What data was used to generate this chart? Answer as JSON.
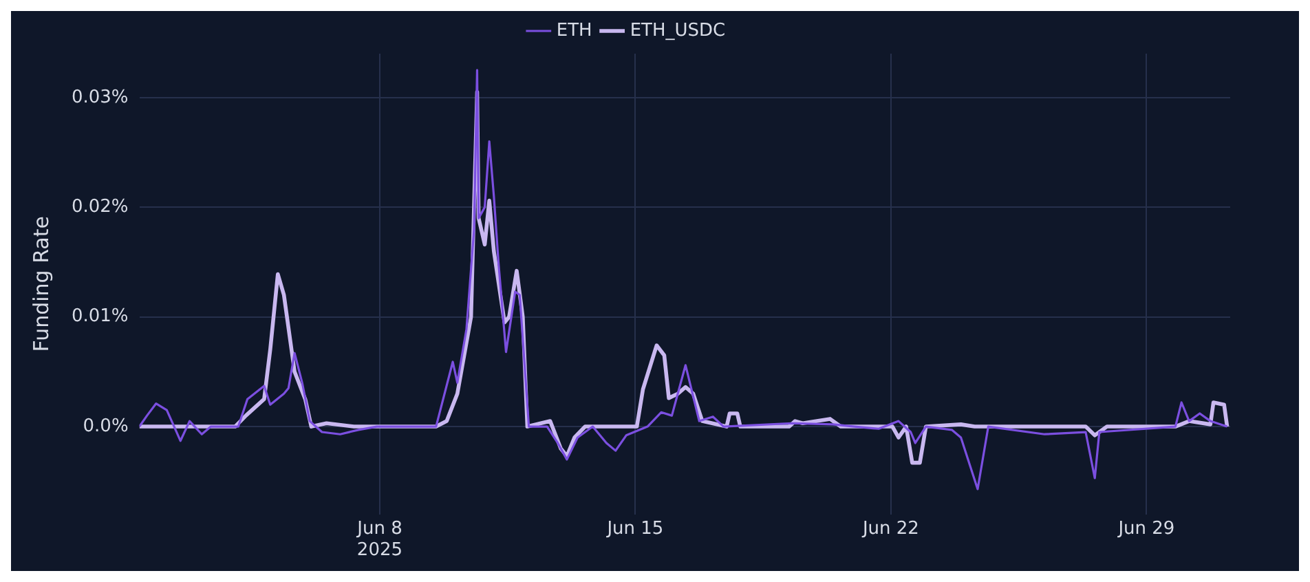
{
  "chart_data": {
    "type": "line",
    "ylabel": "Funding Rate",
    "legend": "top",
    "grid": true,
    "marker": "none",
    "line_style": "solid",
    "xlim": [
      "2025-06-01T10:00",
      "2025-07-01T07:00"
    ],
    "xticks": [
      {
        "value": "2025-06-08",
        "label": "Jun 8\n2025"
      },
      {
        "value": "2025-06-15",
        "label": "Jun 15"
      },
      {
        "value": "2025-06-22",
        "label": "Jun 22"
      },
      {
        "value": "2025-06-29",
        "label": "Jun 29"
      }
    ],
    "ylim": [
      -0.008,
      0.034
    ],
    "yticks": [
      {
        "value": 0,
        "label": "0.0%"
      },
      {
        "value": 0.01,
        "label": "0.01%"
      },
      {
        "value": 0.02,
        "label": "0.02%"
      },
      {
        "value": 0.03,
        "label": "0.03%"
      }
    ],
    "series": [
      {
        "name": "ETH",
        "color": "#7b4fe0",
        "x": [
          "2025-06-01T10:00",
          "2025-06-01T15:00",
          "2025-06-01T21:00",
          "2025-06-02T04:00",
          "2025-06-02T13:00",
          "2025-06-02T19:00",
          "2025-06-03T03:00",
          "2025-06-03T09:00",
          "2025-06-04T03:00",
          "2025-06-04T09:00",
          "2025-06-04T20:00",
          "2025-06-05T00:00",
          "2025-06-05T09:00",
          "2025-06-05T12:00",
          "2025-06-05T16:00",
          "2025-06-05T21:00",
          "2025-06-06T02:00",
          "2025-06-06T10:00",
          "2025-06-06T22:00",
          "2025-06-07T10:00",
          "2025-06-07T22:00",
          "2025-06-09T13:00",
          "2025-06-10T00:00",
          "2025-06-10T03:00",
          "2025-06-10T09:00",
          "2025-06-10T14:00",
          "2025-06-10T16:00",
          "2025-06-10T17:00",
          "2025-06-10T21:00",
          "2025-06-11T00:00",
          "2025-06-11T03:00",
          "2025-06-11T06:00",
          "2025-06-11T11:00",
          "2025-06-11T17:00",
          "2025-06-11T20:00",
          "2025-06-12T02:00",
          "2025-06-12T14:00",
          "2025-06-12T21:00",
          "2025-06-13T03:00",
          "2025-06-13T10:00",
          "2025-06-13T20:00",
          "2025-06-14T05:00",
          "2025-06-14T11:00",
          "2025-06-14T18:00",
          "2025-06-15T08:00",
          "2025-06-15T17:00",
          "2025-06-16T00:00",
          "2025-06-16T09:00",
          "2025-06-16T18:00",
          "2025-06-17T03:00",
          "2025-06-17T10:00",
          "2025-06-19T07:00",
          "2025-06-20T10:00",
          "2025-06-21T00:00",
          "2025-06-21T16:00",
          "2025-06-22T05:00",
          "2025-06-22T13:00",
          "2025-06-22T16:00",
          "2025-06-22T23:00",
          "2025-06-23T16:00",
          "2025-06-23T22:00",
          "2025-06-24T09:00",
          "2025-06-24T16:00",
          "2025-06-26T05:00",
          "2025-06-27T08:00",
          "2025-06-27T14:00",
          "2025-06-27T17:00",
          "2025-06-29T19:00",
          "2025-06-29T23:00",
          "2025-06-30T04:00",
          "2025-06-30T11:00",
          "2025-06-30T18:00",
          "2025-07-01T05:00"
        ],
        "values": [
          0,
          0.001,
          0.0021,
          0.0015,
          -0.0013,
          0.0005,
          -0.0007,
          0,
          0,
          0.0025,
          0.0037,
          0.002,
          0.003,
          0.0035,
          0.0067,
          0.004,
          0.0005,
          -0.0005,
          -0.0007,
          -0.0003,
          0,
          0,
          0.0059,
          0.004,
          0.0089,
          0.018,
          0.0325,
          0.019,
          0.02,
          0.026,
          0.021,
          0.015,
          0.0068,
          0.0123,
          0.012,
          0,
          0,
          -0.0015,
          -0.003,
          -0.001,
          0,
          -0.0015,
          -0.0022,
          -0.0008,
          0,
          0.0013,
          0.001,
          0.0056,
          0.0005,
          0.0009,
          0,
          0.0003,
          0.0002,
          0,
          -0.0002,
          0.0005,
          -0.0005,
          -0.0015,
          0,
          -0.0003,
          -0.001,
          -0.0057,
          0,
          -0.0007,
          -0.0005,
          -0.0047,
          -0.0005,
          0,
          0.0022,
          0.0005,
          0.0012,
          0.0005,
          0
        ]
      },
      {
        "name": "ETH_USDC",
        "color": "#c9b8f0",
        "x": [
          "2025-06-01T10:00",
          "2025-06-04T01:00",
          "2025-06-04T08:00",
          "2025-06-04T20:00",
          "2025-06-05T00:00",
          "2025-06-05T05:00",
          "2025-06-05T09:00",
          "2025-06-05T16:00",
          "2025-06-05T23:00",
          "2025-06-06T03:00",
          "2025-06-06T13:00",
          "2025-06-07T07:00",
          "2025-06-09T13:00",
          "2025-06-09T20:00",
          "2025-06-10T03:00",
          "2025-06-10T12:00",
          "2025-06-10T16:00",
          "2025-06-10T17:00",
          "2025-06-10T21:00",
          "2025-06-11T00:00",
          "2025-06-11T03:00",
          "2025-06-11T10:00",
          "2025-06-11T13:00",
          "2025-06-11T18:00",
          "2025-06-11T22:00",
          "2025-06-12T01:00",
          "2025-06-12T16:00",
          "2025-06-12T23:00",
          "2025-06-13T03:00",
          "2025-06-13T08:00",
          "2025-06-13T15:00",
          "2025-06-15T01:00",
          "2025-06-15T05:00",
          "2025-06-15T14:00",
          "2025-06-15T19:00",
          "2025-06-15T22:00",
          "2025-06-16T04:00",
          "2025-06-16T09:00",
          "2025-06-16T14:00",
          "2025-06-16T20:00",
          "2025-06-17T12:00",
          "2025-06-17T14:00",
          "2025-06-17T19:00",
          "2025-06-17T21:00",
          "2025-06-19T05:00",
          "2025-06-19T09:00",
          "2025-06-19T14:00",
          "2025-06-20T08:00",
          "2025-06-20T15:00",
          "2025-06-22T01:00",
          "2025-06-22T05:00",
          "2025-06-22T10:00",
          "2025-06-22T14:00",
          "2025-06-22T19:00",
          "2025-06-22T23:00",
          "2025-06-23T22:00",
          "2025-06-24T07:00",
          "2025-06-27T08:00",
          "2025-06-27T14:00",
          "2025-06-27T22:00",
          "2025-06-29T19:00",
          "2025-06-30T04:00",
          "2025-06-30T18:00",
          "2025-06-30T20:00",
          "2025-07-01T03:00",
          "2025-07-01T05:00"
        ],
        "values": [
          0,
          0,
          0.001,
          0.0025,
          0.007,
          0.0139,
          0.012,
          0.005,
          0.0025,
          0,
          0.0003,
          0,
          0,
          0.0005,
          0.003,
          0.01,
          0.0305,
          0.019,
          0.0166,
          0.0206,
          0.016,
          0.0095,
          0.01,
          0.0142,
          0.01,
          0,
          0.0005,
          -0.002,
          -0.0027,
          -0.001,
          0,
          0,
          0.0034,
          0.0074,
          0.0065,
          0.0026,
          0.003,
          0.0036,
          0.003,
          0.0005,
          0,
          0.0012,
          0.0012,
          0,
          0,
          0.0005,
          0.0003,
          0.0007,
          0,
          0,
          -0.001,
          0,
          -0.0033,
          -0.0033,
          0,
          0.0002,
          0,
          0,
          -0.0008,
          0,
          0,
          0.0005,
          0.0002,
          0.0022,
          0.002,
          0
        ]
      }
    ]
  }
}
